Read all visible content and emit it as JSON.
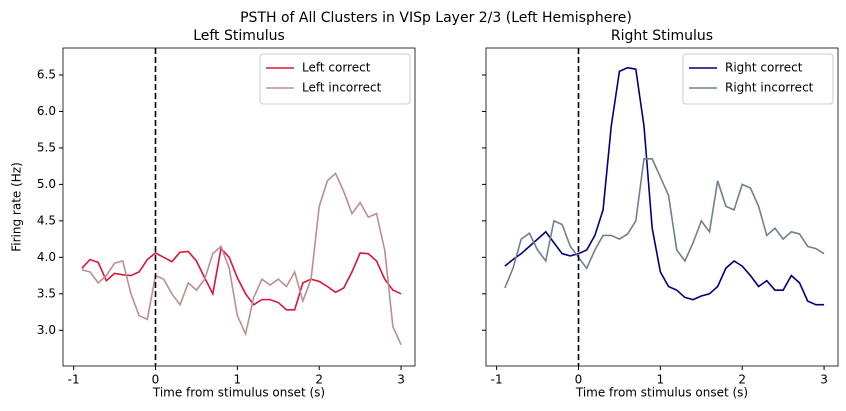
{
  "title": "PSTH of All Clusters in VISp Layer 2/3 (Left Hemisphere)",
  "chart_data": [
    {
      "type": "line",
      "title": "Left Stimulus",
      "xlabel": "Time from stimulus onset (s)",
      "ylabel": "Firing rate (Hz)",
      "x": [
        -0.9,
        -0.8,
        -0.7,
        -0.6,
        -0.5,
        -0.4,
        -0.3,
        -0.2,
        -0.1,
        0,
        0.1,
        0.2,
        0.3,
        0.4,
        0.5,
        0.6,
        0.7,
        0.8,
        0.9,
        1.0,
        1.1,
        1.2,
        1.3,
        1.4,
        1.5,
        1.6,
        1.7,
        1.8,
        1.9,
        2.0,
        2.1,
        2.2,
        2.3,
        2.4,
        2.5,
        2.6,
        2.7,
        2.8,
        2.9,
        3.0
      ],
      "series": [
        {
          "name": "Left correct",
          "color": "#dc143c",
          "values": [
            3.85,
            3.97,
            3.93,
            3.68,
            3.78,
            3.76,
            3.75,
            3.8,
            3.97,
            4.06,
            4.0,
            3.94,
            4.07,
            4.08,
            3.95,
            3.72,
            3.5,
            4.12,
            4.0,
            3.72,
            3.5,
            3.35,
            3.42,
            3.42,
            3.38,
            3.28,
            3.28,
            3.65,
            3.7,
            3.67,
            3.6,
            3.52,
            3.58,
            3.8,
            4.06,
            4.05,
            3.95,
            3.7,
            3.55,
            3.5
          ]
        },
        {
          "name": "Left incorrect",
          "color": "#bc8f8f",
          "values": [
            3.83,
            3.8,
            3.65,
            3.75,
            3.92,
            3.95,
            3.5,
            3.2,
            3.15,
            3.75,
            3.7,
            3.5,
            3.35,
            3.65,
            3.55,
            3.7,
            4.05,
            4.15,
            3.85,
            3.2,
            2.95,
            3.45,
            3.7,
            3.62,
            3.7,
            3.6,
            3.8,
            3.4,
            3.7,
            4.7,
            5.05,
            5.15,
            4.9,
            4.6,
            4.75,
            4.55,
            4.6,
            4.1,
            3.05,
            2.8
          ]
        }
      ],
      "xlim": [
        -1.13,
        3.17
      ],
      "xticks": [
        -1,
        0,
        1,
        2,
        3
      ],
      "ylim": [
        2.51,
        6.87
      ],
      "yticks": [
        {
          "value": 3,
          "label": "3.0"
        },
        3.5,
        {
          "value": 4,
          "label": "4.0"
        },
        4.5,
        {
          "value": 5,
          "label": "5.0"
        },
        5.5,
        {
          "value": 6,
          "label": "6.0"
        },
        6.5
      ],
      "vline": 0,
      "legend": "upper right"
    },
    {
      "type": "line",
      "title": "Right Stimulus",
      "xlabel": "Time from stimulus onset (s)",
      "sharey": true,
      "x": [
        -0.9,
        -0.8,
        -0.7,
        -0.6,
        -0.5,
        -0.4,
        -0.3,
        -0.2,
        -0.1,
        0,
        0.1,
        0.2,
        0.3,
        0.4,
        0.5,
        0.6,
        0.7,
        0.8,
        0.9,
        1.0,
        1.1,
        1.2,
        1.3,
        1.4,
        1.5,
        1.6,
        1.7,
        1.8,
        1.9,
        2.0,
        2.1,
        2.2,
        2.3,
        2.4,
        2.5,
        2.6,
        2.7,
        2.8,
        2.9,
        3.0
      ],
      "series": [
        {
          "name": "Right correct",
          "color": "#000080",
          "values": [
            3.88,
            3.97,
            4.05,
            4.15,
            4.25,
            4.35,
            4.2,
            4.05,
            4.02,
            4.05,
            4.1,
            4.3,
            4.65,
            5.8,
            6.55,
            6.6,
            6.58,
            5.8,
            4.4,
            3.8,
            3.6,
            3.55,
            3.45,
            3.42,
            3.47,
            3.5,
            3.6,
            3.85,
            3.95,
            3.88,
            3.75,
            3.6,
            3.68,
            3.55,
            3.55,
            3.75,
            3.65,
            3.4,
            3.35,
            3.35
          ]
        },
        {
          "name": "Right incorrect",
          "color": "#708090",
          "values": [
            3.58,
            3.85,
            4.25,
            4.33,
            4.1,
            3.95,
            4.5,
            4.45,
            4.15,
            4.0,
            3.85,
            4.1,
            4.3,
            4.3,
            4.25,
            4.32,
            4.5,
            5.35,
            5.35,
            5.1,
            4.85,
            4.1,
            3.95,
            4.2,
            4.5,
            4.35,
            5.05,
            4.7,
            4.65,
            5.0,
            4.95,
            4.7,
            4.3,
            4.4,
            4.25,
            4.35,
            4.32,
            4.15,
            4.12,
            4.05
          ]
        }
      ],
      "xlim": [
        -1.13,
        3.17
      ],
      "xticks": [
        -1,
        0,
        1,
        2,
        3
      ],
      "vline": 0,
      "legend": "upper right"
    }
  ]
}
